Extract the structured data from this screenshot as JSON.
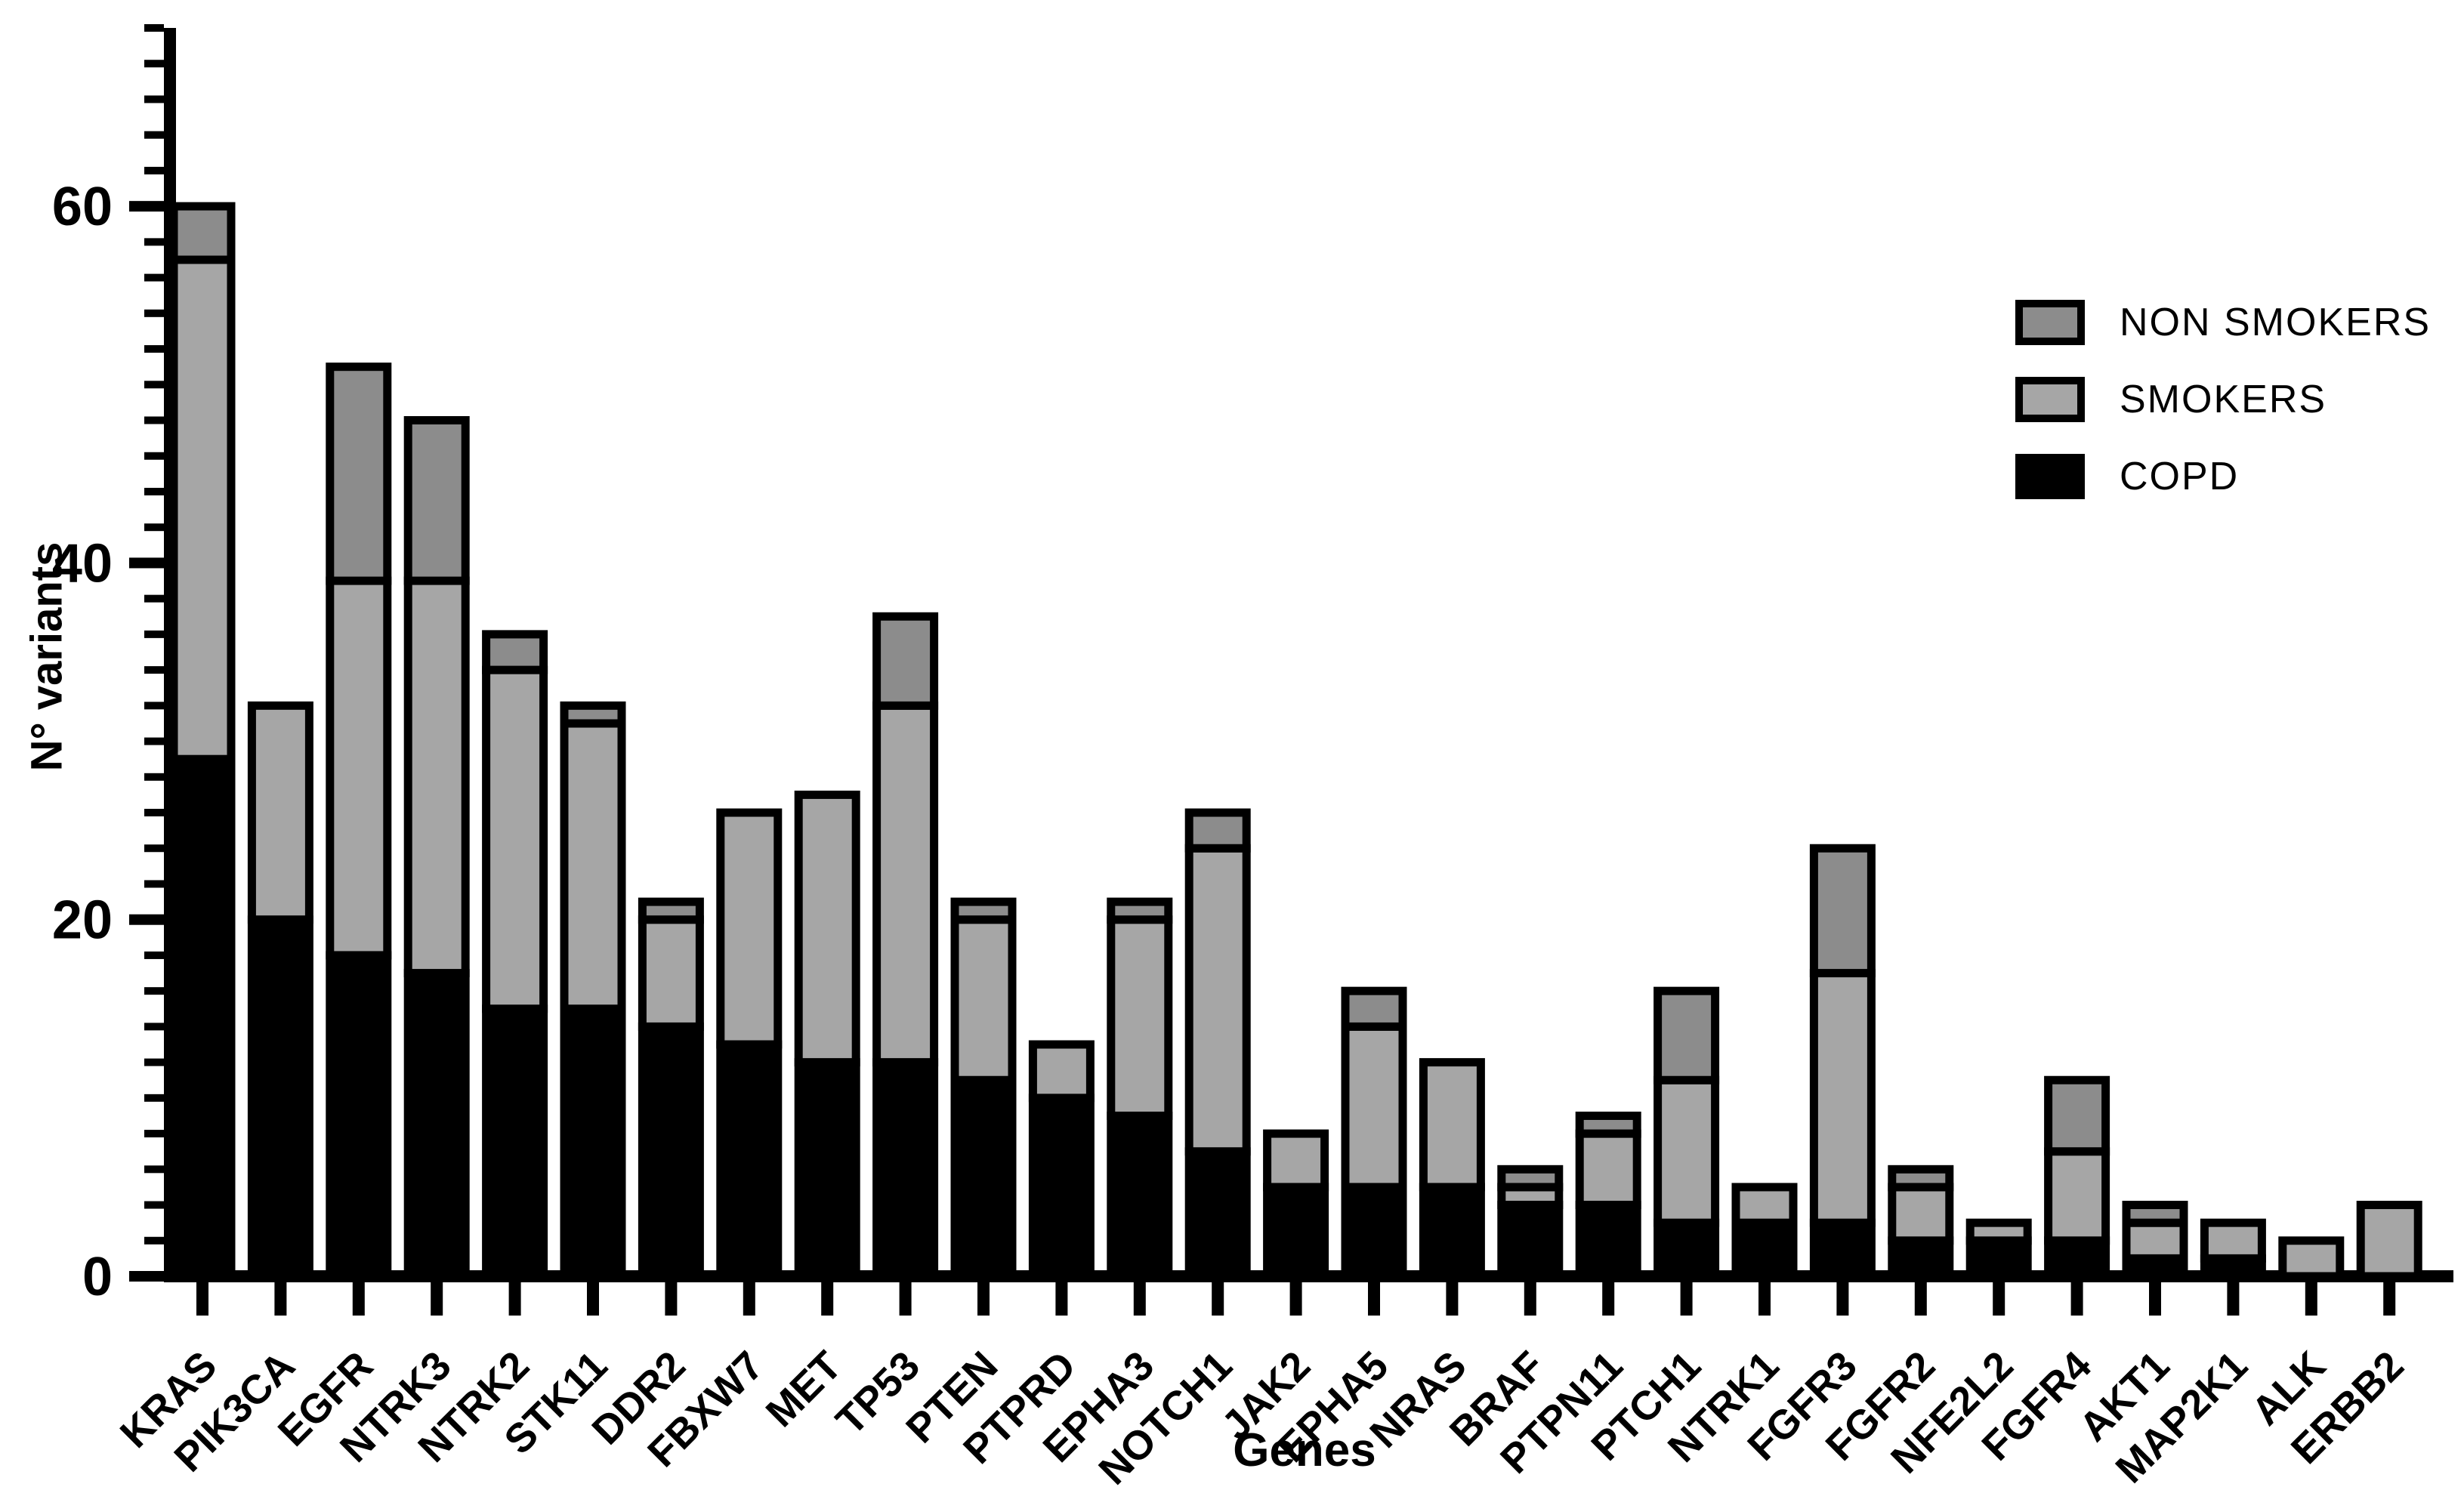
{
  "figure": {
    "background": "#ffffff"
  },
  "legend": [
    {
      "label": "NON SMOKERS",
      "color": "#8c8c8c"
    },
    {
      "label": "SMOKERS",
      "color": "#a6a6a6"
    },
    {
      "label": "COPD",
      "color": "#000000"
    }
  ],
  "chart_data": {
    "type": "bar",
    "stacked": true,
    "stack_order": "bottom-to-top",
    "title": "",
    "xlabel": "Genes",
    "ylabel": "N° variants",
    "ylim": [
      0,
      70
    ],
    "y_major_ticks": [
      0,
      20,
      40,
      60
    ],
    "y_minor_tick_step": 2,
    "grid": false,
    "legend_position": "upper right",
    "categories": [
      "KRAS",
      "PIK3CA",
      "EGFR",
      "NTRK3",
      "NTRK2",
      "STK11",
      "DDR2",
      "FBXW7",
      "MET",
      "TP53",
      "PTEN",
      "PTPRD",
      "EPHA3",
      "NOTCH1",
      "JAK2",
      "EPHA5",
      "NRAS",
      "BRAF",
      "PTPN11",
      "PTCH1",
      "NTRK1",
      "FGFR3",
      "FGFR2",
      "NFE2L2",
      "FGFR4",
      "AKT1",
      "MAP2K1",
      "ALK",
      "ERBB2"
    ],
    "series": [
      {
        "name": "COPD",
        "color": "#000000",
        "values": [
          29,
          20,
          18,
          17,
          15,
          15,
          14,
          13,
          12,
          12,
          11,
          10,
          9,
          7,
          5,
          5,
          5,
          4,
          4,
          3,
          3,
          3,
          2,
          2,
          2,
          1,
          1,
          0,
          0
        ]
      },
      {
        "name": "SMOKERS",
        "color": "#a6a6a6",
        "values": [
          28,
          12,
          21,
          22,
          19,
          16,
          6,
          13,
          15,
          20,
          9,
          3,
          11,
          17,
          3,
          9,
          7,
          1,
          4,
          8,
          2,
          14,
          3,
          1,
          5,
          2,
          2,
          2,
          4
        ]
      },
      {
        "name": "NON SMOKERS",
        "color": "#8c8c8c",
        "values": [
          3,
          0,
          12,
          9,
          2,
          1,
          1,
          0,
          0,
          5,
          1,
          0,
          1,
          2,
          0,
          2,
          0,
          1,
          1,
          5,
          0,
          7,
          1,
          0,
          4,
          1,
          0,
          0,
          0
        ]
      }
    ]
  }
}
